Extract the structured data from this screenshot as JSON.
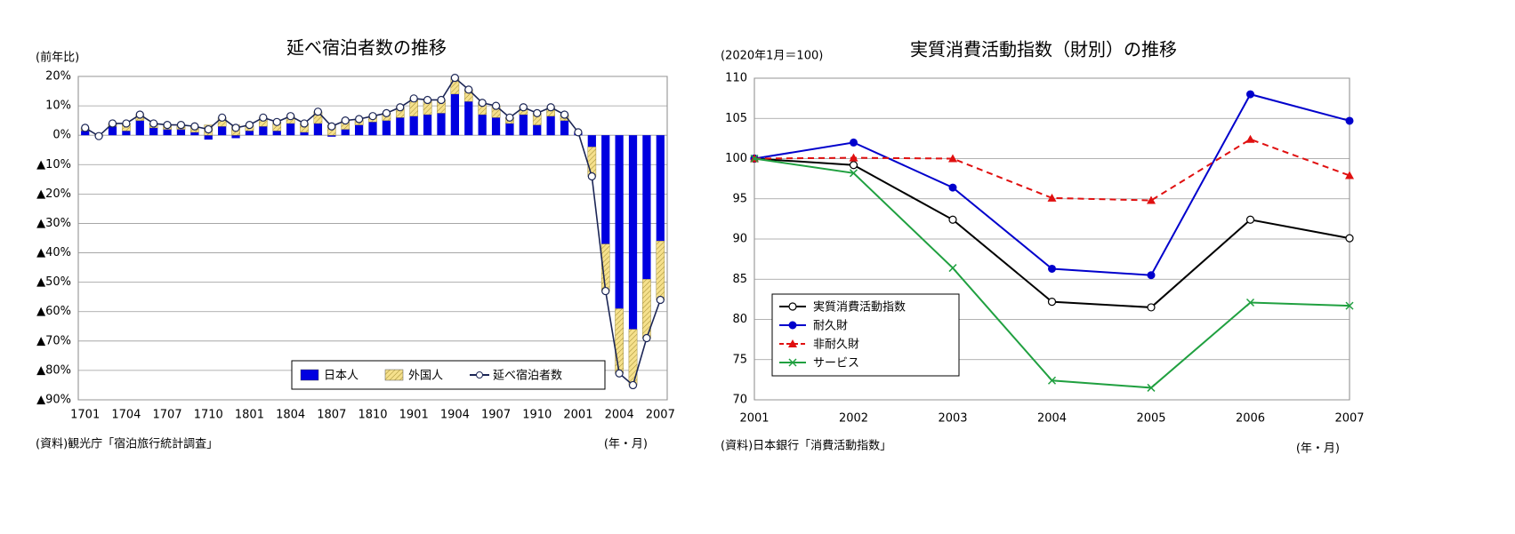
{
  "chart_data": [
    {
      "type": "bar",
      "stacked": true,
      "title": "延べ宿泊者数の推移",
      "y_label": "(前年比)",
      "source": "(資料)観光庁「宿泊旅行統計調査」",
      "x_label": "(年・月)",
      "categories": [
        "1701",
        null,
        null,
        "1704",
        null,
        null,
        "1707",
        null,
        null,
        "1710",
        null,
        null,
        "1801",
        null,
        null,
        "1804",
        null,
        null,
        "1807",
        null,
        null,
        "1810",
        null,
        null,
        "1901",
        null,
        null,
        "1904",
        null,
        null,
        "1907",
        null,
        null,
        "1910",
        null,
        null,
        "2001",
        null,
        null,
        "2004",
        null,
        null,
        "2007"
      ],
      "series": [
        {
          "name": "日本人",
          "color": "#0000e0",
          "values": [
            1.5,
            -0.5,
            3,
            1.5,
            5,
            2.5,
            2,
            2,
            1,
            -1.5,
            3,
            -1,
            1.5,
            3,
            1.5,
            4,
            1,
            4,
            -0.5,
            2,
            3.5,
            4.5,
            5,
            6,
            6.5,
            7,
            7.5,
            14,
            11.5,
            7,
            6,
            4,
            7,
            3.5,
            6.5,
            5,
            1,
            -4,
            -37,
            -59,
            -66,
            -49,
            -36
          ]
        },
        {
          "name": "外国人",
          "color": "#f5e08c",
          "values": [
            1,
            0.2,
            1,
            2.5,
            2,
            1.5,
            1.5,
            1.5,
            2,
            3.5,
            3,
            3.5,
            2,
            3,
            3,
            2.5,
            3,
            4,
            3.5,
            3,
            2,
            2,
            2.5,
            3.5,
            6,
            5,
            4.5,
            5.5,
            4,
            4,
            4,
            2,
            2.5,
            4,
            3,
            2,
            0,
            -10,
            -16,
            -22,
            -19,
            -20,
            -20
          ]
        },
        {
          "name": "延べ宿泊者数",
          "type": "line",
          "color": "#1c2656",
          "values": [
            2.5,
            -0.3,
            4,
            4,
            7,
            4,
            3.5,
            3.5,
            3,
            2,
            6,
            2.5,
            3.5,
            6,
            4.5,
            6.5,
            4,
            8,
            3,
            5,
            5.5,
            6.5,
            7.5,
            9.5,
            12.5,
            12,
            12,
            19.5,
            15.5,
            11,
            10,
            6,
            9.5,
            7.5,
            9.5,
            7,
            1,
            -14,
            -53,
            -81,
            -85,
            -69,
            -56
          ]
        }
      ],
      "ylim": [
        -90,
        20
      ],
      "yticks": [
        {
          "value": 20,
          "label": "20%"
        },
        {
          "value": 10,
          "label": "10%"
        },
        {
          "value": 0,
          "label": "0%"
        },
        {
          "value": -10,
          "label": "▲10%"
        },
        {
          "value": -20,
          "label": "▲20%"
        },
        {
          "value": -30,
          "label": "▲30%"
        },
        {
          "value": -40,
          "label": "▲40%"
        },
        {
          "value": -50,
          "label": "▲50%"
        },
        {
          "value": -60,
          "label": "▲60%"
        },
        {
          "value": -70,
          "label": "▲70%"
        },
        {
          "value": -80,
          "label": "▲80%"
        },
        {
          "value": -90,
          "label": "▲90%"
        }
      ],
      "grid": true,
      "legend": "lower right"
    },
    {
      "type": "line",
      "title": "実質消費活動指数（財別）の推移",
      "y_label": "(2020年1月＝100)",
      "source": "(資料)日本銀行「消費活動指数」",
      "x_label": "(年・月)",
      "categories": [
        "2001",
        "2002",
        "2003",
        "2004",
        "2005",
        "2006",
        "2007"
      ],
      "series": [
        {
          "name": "実質消費活動指数",
          "color": "#000000",
          "marker": "circle-open",
          "values": [
            100,
            99.2,
            92.4,
            82.2,
            81.5,
            92.4,
            90.1
          ]
        },
        {
          "name": "耐久財",
          "color": "#0000cc",
          "marker": "circle",
          "values": [
            100,
            102,
            96.4,
            86.3,
            85.5,
            108,
            104.7
          ]
        },
        {
          "name": "非耐久財",
          "color": "#e01010",
          "marker": "triangle",
          "line_style": "dashed",
          "values": [
            100,
            100.1,
            100,
            95.1,
            94.8,
            102.4,
            97.9
          ]
        },
        {
          "name": "サービス",
          "color": "#20a040",
          "marker": "x",
          "values": [
            100,
            98.2,
            86.4,
            72.4,
            71.5,
            82.1,
            81.7
          ]
        }
      ],
      "ylim": [
        70,
        110
      ],
      "yticks": [
        70,
        75,
        80,
        85,
        90,
        95,
        100,
        105,
        110
      ],
      "grid": true,
      "legend": "lower left"
    }
  ]
}
